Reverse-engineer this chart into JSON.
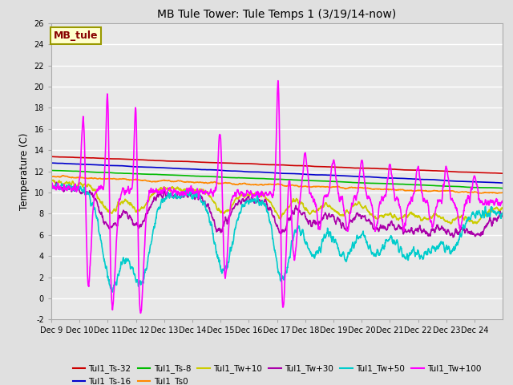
{
  "title": "MB Tule Tower: Tule Temps 1 (3/19/14-now)",
  "xlabel": "",
  "ylabel": "Temperature (C)",
  "ylim": [
    -2,
    26
  ],
  "yticks": [
    -2,
    0,
    2,
    4,
    6,
    8,
    10,
    12,
    14,
    16,
    18,
    20,
    22,
    24,
    26
  ],
  "xtick_labels": [
    "Dec 9",
    "Dec 10",
    "Dec 11",
    "Dec 12",
    "Dec 13",
    "Dec 14",
    "Dec 15",
    "Dec 16",
    "Dec 17",
    "Dec 18",
    "Dec 19",
    "Dec 20",
    "Dec 21",
    "Dec 22",
    "Dec 23",
    "Dec 24"
  ],
  "bg_color": "#e0e0e0",
  "plot_bg_color": "#e8e8e8",
  "series": [
    {
      "label": "Tul1_Ts-32",
      "color": "#cc0000",
      "linewidth": 1.2
    },
    {
      "label": "Tul1_Ts-16",
      "color": "#0000cc",
      "linewidth": 1.2
    },
    {
      "label": "Tul1_Ts-8",
      "color": "#00bb00",
      "linewidth": 1.2
    },
    {
      "label": "Tul1_Ts0",
      "color": "#ff8800",
      "linewidth": 1.2
    },
    {
      "label": "Tul1_Tw+10",
      "color": "#cccc00",
      "linewidth": 1.2
    },
    {
      "label": "Tul1_Tw+30",
      "color": "#aa00aa",
      "linewidth": 1.2
    },
    {
      "label": "Tul1_Tw+50",
      "color": "#00cccc",
      "linewidth": 1.2
    },
    {
      "label": "Tul1_Tw+100",
      "color": "#ff00ff",
      "linewidth": 1.2
    }
  ],
  "legend_box_facecolor": "#ffffcc",
  "legend_box_edgecolor": "#999900",
  "legend_label": "MB_tule",
  "legend_text_color": "#880000"
}
